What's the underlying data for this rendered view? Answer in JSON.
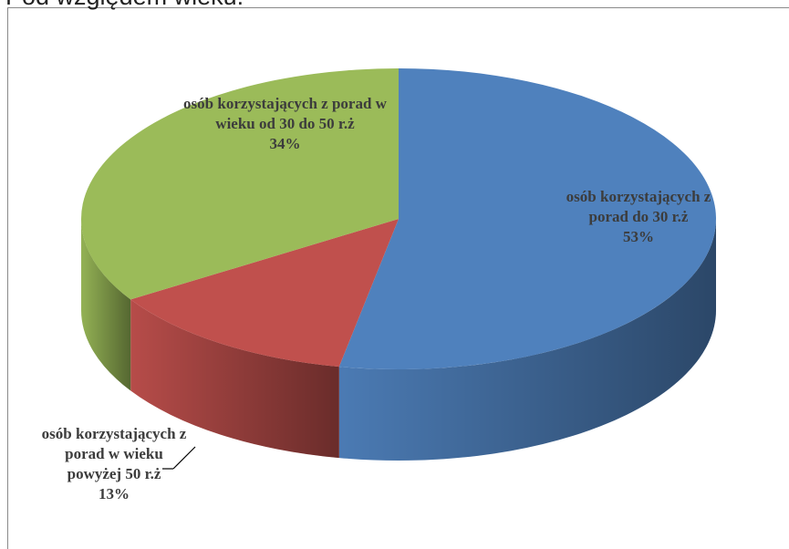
{
  "chart_data": {
    "type": "pie3d",
    "title": "Pod względem wieku:",
    "categories": [
      "osób korzystających z porad  do 30 r.ż",
      "osób korzystających z porad w wieku powyżej 50 r.ż",
      "osób korzystających z porad  w wieku od 30 do 50 r.ż"
    ],
    "values": [
      53,
      13,
      34
    ],
    "value_labels": [
      "53%",
      "13%",
      "34%"
    ],
    "colors": [
      "#4f81bd",
      "#c0504d",
      "#9bbb59"
    ]
  }
}
